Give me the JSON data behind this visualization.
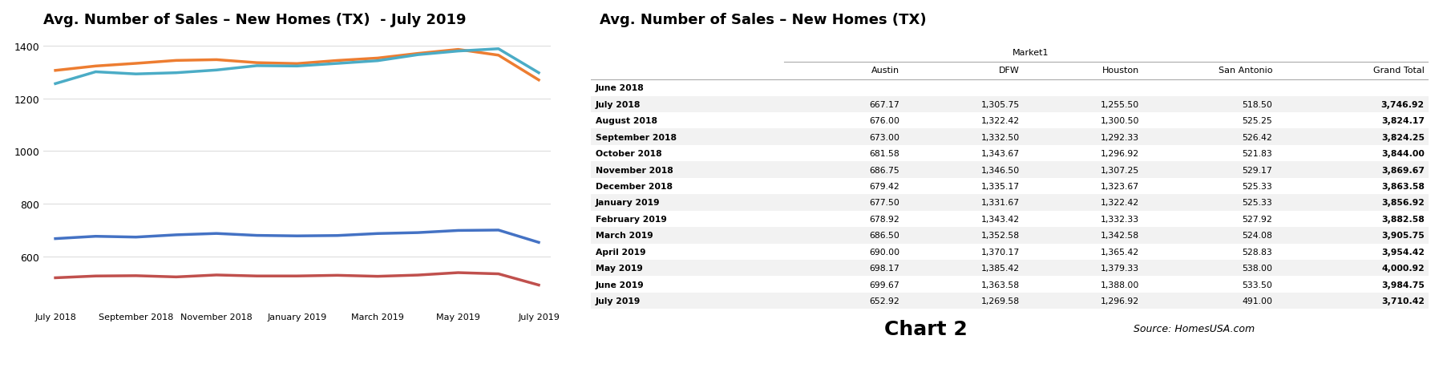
{
  "chart_title": "Avg. Number of Sales – New Homes (TX)  - July 2019",
  "table_title": "Avg. Number of Sales – New Homes (TX)",
  "months": [
    "July 2018",
    "August 2018",
    "September 2018",
    "October 2018",
    "November 2018",
    "December 2018",
    "January 2019",
    "February 2019",
    "March 2019",
    "April 2019",
    "May 2019",
    "June 2019",
    "July 2019"
  ],
  "austin": [
    667.17,
    676.0,
    673.0,
    681.58,
    686.75,
    679.42,
    677.5,
    678.92,
    686.5,
    690.0,
    698.17,
    699.67,
    652.92
  ],
  "dfw": [
    1305.75,
    1322.42,
    1332.5,
    1343.67,
    1346.5,
    1335.17,
    1331.67,
    1343.42,
    1352.58,
    1370.17,
    1385.42,
    1363.58,
    1269.58
  ],
  "houston": [
    1255.5,
    1300.5,
    1292.33,
    1296.92,
    1307.25,
    1323.67,
    1322.42,
    1332.33,
    1342.58,
    1365.42,
    1379.33,
    1388.0,
    1296.92
  ],
  "san_antonio": [
    518.5,
    525.25,
    526.42,
    521.83,
    529.17,
    525.33,
    525.33,
    527.92,
    524.08,
    528.83,
    538.0,
    533.5,
    491.0
  ],
  "austin_color": "#4472C4",
  "dfw_color": "#ED7D31",
  "houston_color_line": "#4BACC6",
  "san_antonio_color": "#C0504D",
  "ylim": [
    400,
    1450
  ],
  "yticks": [
    600,
    800,
    1000,
    1200,
    1400
  ],
  "xticks_idx": [
    0,
    2,
    4,
    6,
    8,
    10,
    12
  ],
  "table_rows": [
    [
      "June 2018",
      "",
      "",
      "",
      "",
      ""
    ],
    [
      "July 2018",
      "667.17",
      "1,305.75",
      "1,255.50",
      "518.50",
      "3,746.92"
    ],
    [
      "August 2018",
      "676.00",
      "1,322.42",
      "1,300.50",
      "525.25",
      "3,824.17"
    ],
    [
      "September 2018",
      "673.00",
      "1,332.50",
      "1,292.33",
      "526.42",
      "3,824.25"
    ],
    [
      "October 2018",
      "681.58",
      "1,343.67",
      "1,296.92",
      "521.83",
      "3,844.00"
    ],
    [
      "November 2018",
      "686.75",
      "1,346.50",
      "1,307.25",
      "529.17",
      "3,869.67"
    ],
    [
      "December 2018",
      "679.42",
      "1,335.17",
      "1,323.67",
      "525.33",
      "3,863.58"
    ],
    [
      "January 2019",
      "677.50",
      "1,331.67",
      "1,322.42",
      "525.33",
      "3,856.92"
    ],
    [
      "February 2019",
      "678.92",
      "1,343.42",
      "1,332.33",
      "527.92",
      "3,882.58"
    ],
    [
      "March 2019",
      "686.50",
      "1,352.58",
      "1,342.58",
      "524.08",
      "3,905.75"
    ],
    [
      "April 2019",
      "690.00",
      "1,370.17",
      "1,365.42",
      "528.83",
      "3,954.42"
    ],
    [
      "May 2019",
      "698.17",
      "1,385.42",
      "1,379.33",
      "538.00",
      "4,000.92"
    ],
    [
      "June 2019",
      "699.67",
      "1,363.58",
      "1,388.00",
      "533.50",
      "3,984.75"
    ],
    [
      "July 2019",
      "652.92",
      "1,269.58",
      "1,296.92",
      "491.00",
      "3,710.42"
    ]
  ],
  "col_headers": [
    "",
    "Austin",
    "DFW",
    "Houston",
    "San Antonio",
    "Grand Total"
  ],
  "chart2_label": "Chart 2",
  "source_label": "Source: HomesUSA.com",
  "background_color": "#FFFFFF",
  "grid_color": "#DDDDDD",
  "stripe_color": "#F2F2F2"
}
